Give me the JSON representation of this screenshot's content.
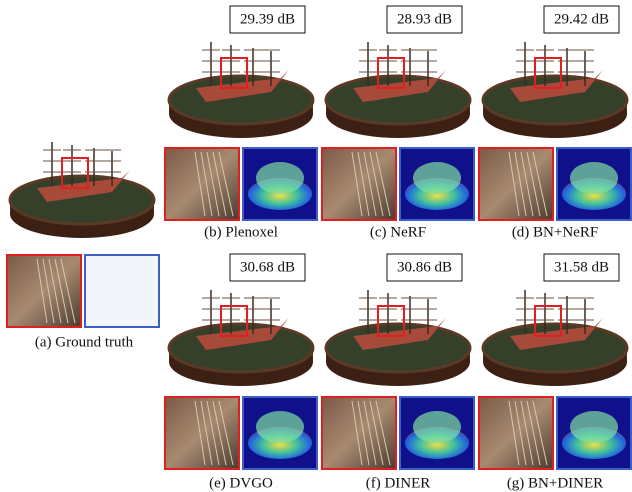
{
  "panels": [
    {
      "label": "(a) Ground truth"
    },
    {
      "label": "(b) Plenoxel",
      "psnr": "29.39 dB"
    },
    {
      "label": "(c) NeRF",
      "psnr": "28.93 dB"
    },
    {
      "label": "(d) BN+NeRF",
      "psnr": "29.42 dB"
    },
    {
      "label": "(e) DVGO",
      "psnr": "30.68 dB"
    },
    {
      "label": "(f) DINER",
      "psnr": "30.86 dB"
    },
    {
      "label": "(g) BN+DINER",
      "psnr": "31.58 dB"
    }
  ]
}
